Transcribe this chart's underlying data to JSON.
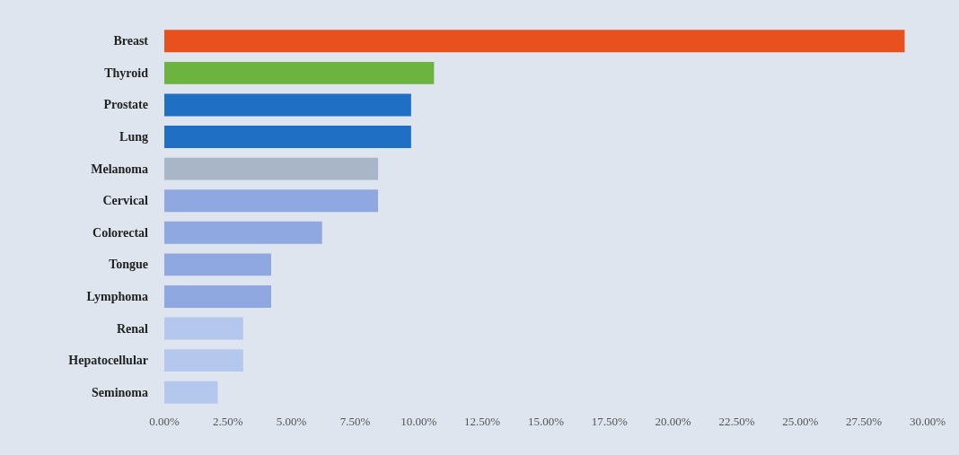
{
  "chart_data": {
    "type": "bar",
    "orientation": "horizontal",
    "categories": [
      "Breast",
      "Thyroid",
      "Prostate",
      "Lung",
      "Melanoma",
      "Cervical",
      "Colorectal",
      "Tongue",
      "Lymphoma",
      "Renal",
      "Hepatocellular",
      "Seminoma"
    ],
    "values": [
      29.1,
      10.6,
      9.7,
      9.7,
      8.4,
      8.4,
      6.2,
      4.2,
      4.2,
      3.1,
      3.1,
      2.1
    ],
    "colors": [
      "#e8501e",
      "#6db33f",
      "#1f6fc5",
      "#1f6fc5",
      "#a9b6c8",
      "#8fa8e0",
      "#8fa8e0",
      "#8fa8e0",
      "#8fa8e0",
      "#b4c8ee",
      "#b4c8ee",
      "#b4c8ee"
    ],
    "xlim": [
      0,
      30
    ],
    "xticks": [
      {
        "value": 0,
        "label": "0.00%"
      },
      {
        "value": 2.5,
        "label": "2.50%"
      },
      {
        "value": 5,
        "label": "5.00%"
      },
      {
        "value": 7.5,
        "label": "7.50%"
      },
      {
        "value": 10,
        "label": "10.00%"
      },
      {
        "value": 12.5,
        "label": "12.50%"
      },
      {
        "value": 15,
        "label": "15.00%"
      },
      {
        "value": 17.5,
        "label": "17.50%"
      },
      {
        "value": 20,
        "label": "20.00%"
      },
      {
        "value": 22.5,
        "label": "22.50%"
      },
      {
        "value": 25,
        "label": "25.00%"
      },
      {
        "value": 27.5,
        "label": "27.50%"
      },
      {
        "value": 30,
        "label": "30.00%"
      }
    ],
    "grid": false
  }
}
